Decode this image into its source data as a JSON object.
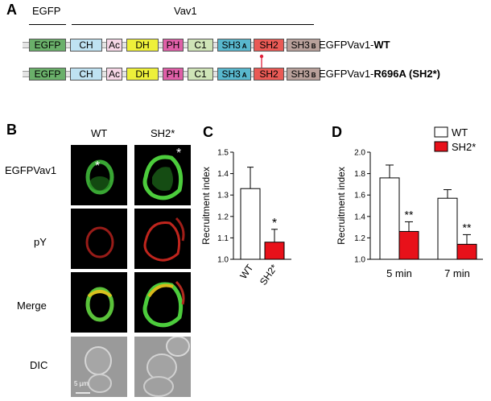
{
  "panel_a": {
    "letter": "A",
    "header_egfp": "EGFP",
    "header_vav1": "Vav1",
    "rows": [
      {
        "label_prefix": "EGFPVav1-",
        "label_bold": "WT",
        "domains": [
          {
            "text": "EGFP",
            "sub": "",
            "color": "#6ab06a"
          },
          {
            "text": "CH",
            "sub": "",
            "color": "#bfe2f2"
          },
          {
            "text": "Ac",
            "sub": "",
            "color": "#f6d6e6"
          },
          {
            "text": "DH",
            "sub": "",
            "color": "#eef03a"
          },
          {
            "text": "PH",
            "sub": "",
            "color": "#df5fa7"
          },
          {
            "text": "C1",
            "sub": "",
            "color": "#cfe4b7"
          },
          {
            "text": "SH3",
            "sub": "A",
            "color": "#58b7cd"
          },
          {
            "text": "SH2",
            "sub": "",
            "color": "#ea5a55"
          },
          {
            "text": "SH3",
            "sub": "B",
            "color": "#b8a09a"
          }
        ]
      },
      {
        "label_prefix": "EGFPVav1-",
        "label_bold": "R696A  (SH2*)",
        "domains": [
          {
            "text": "EGFP",
            "sub": "",
            "color": "#6ab06a"
          },
          {
            "text": "CH",
            "sub": "",
            "color": "#bfe2f2"
          },
          {
            "text": "Ac",
            "sub": "",
            "color": "#f6d6e6"
          },
          {
            "text": "DH",
            "sub": "",
            "color": "#eef03a"
          },
          {
            "text": "PH",
            "sub": "",
            "color": "#df5fa7"
          },
          {
            "text": "C1",
            "sub": "",
            "color": "#cfe4b7"
          },
          {
            "text": "SH3",
            "sub": "A",
            "color": "#58b7cd"
          },
          {
            "text": "SH2",
            "sub": "",
            "color": "#ea5a55"
          },
          {
            "text": "SH3",
            "sub": "B",
            "color": "#b8a09a"
          }
        ]
      }
    ]
  },
  "panel_b": {
    "letter": "B",
    "col_wt": "WT",
    "col_sh2": "SH2*",
    "row_labels": [
      "EGFPVav1",
      "pY",
      "Merge",
      "DIC"
    ],
    "asterisk": "*",
    "scale_bar": "5 µm"
  },
  "chart_data": [
    {
      "type": "bar",
      "panel": "C",
      "categories": [
        "WT",
        "SH2*"
      ],
      "values": [
        1.33,
        1.08
      ],
      "errors": [
        0.1,
        0.06
      ],
      "colors": [
        "#ffffff",
        "#e8111a"
      ],
      "significance": [
        "",
        "*"
      ],
      "ylabel": "Recruitment index",
      "ylim": [
        1.0,
        1.5
      ],
      "yticks": [
        "1.0",
        "1.1",
        "1.2",
        "1.3",
        "1.4",
        "1.5"
      ]
    },
    {
      "type": "bar",
      "panel": "D",
      "categories": [
        "5 min",
        "7 min"
      ],
      "series": [
        {
          "name": "WT",
          "values": [
            1.76,
            1.57
          ],
          "errors": [
            0.12,
            0.08
          ],
          "color": "#ffffff"
        },
        {
          "name": "SH2*",
          "values": [
            1.26,
            1.14
          ],
          "errors": [
            0.09,
            0.09
          ],
          "color": "#e8111a"
        }
      ],
      "significance": [
        [
          "",
          "**"
        ],
        [
          "",
          "**"
        ]
      ],
      "ylabel": "Recruitment index",
      "ylim": [
        1.0,
        2.0
      ],
      "yticks": [
        "1.0",
        "1.2",
        "1.4",
        "1.6",
        "1.8",
        "2.0"
      ],
      "legend_position": "top-right"
    }
  ]
}
